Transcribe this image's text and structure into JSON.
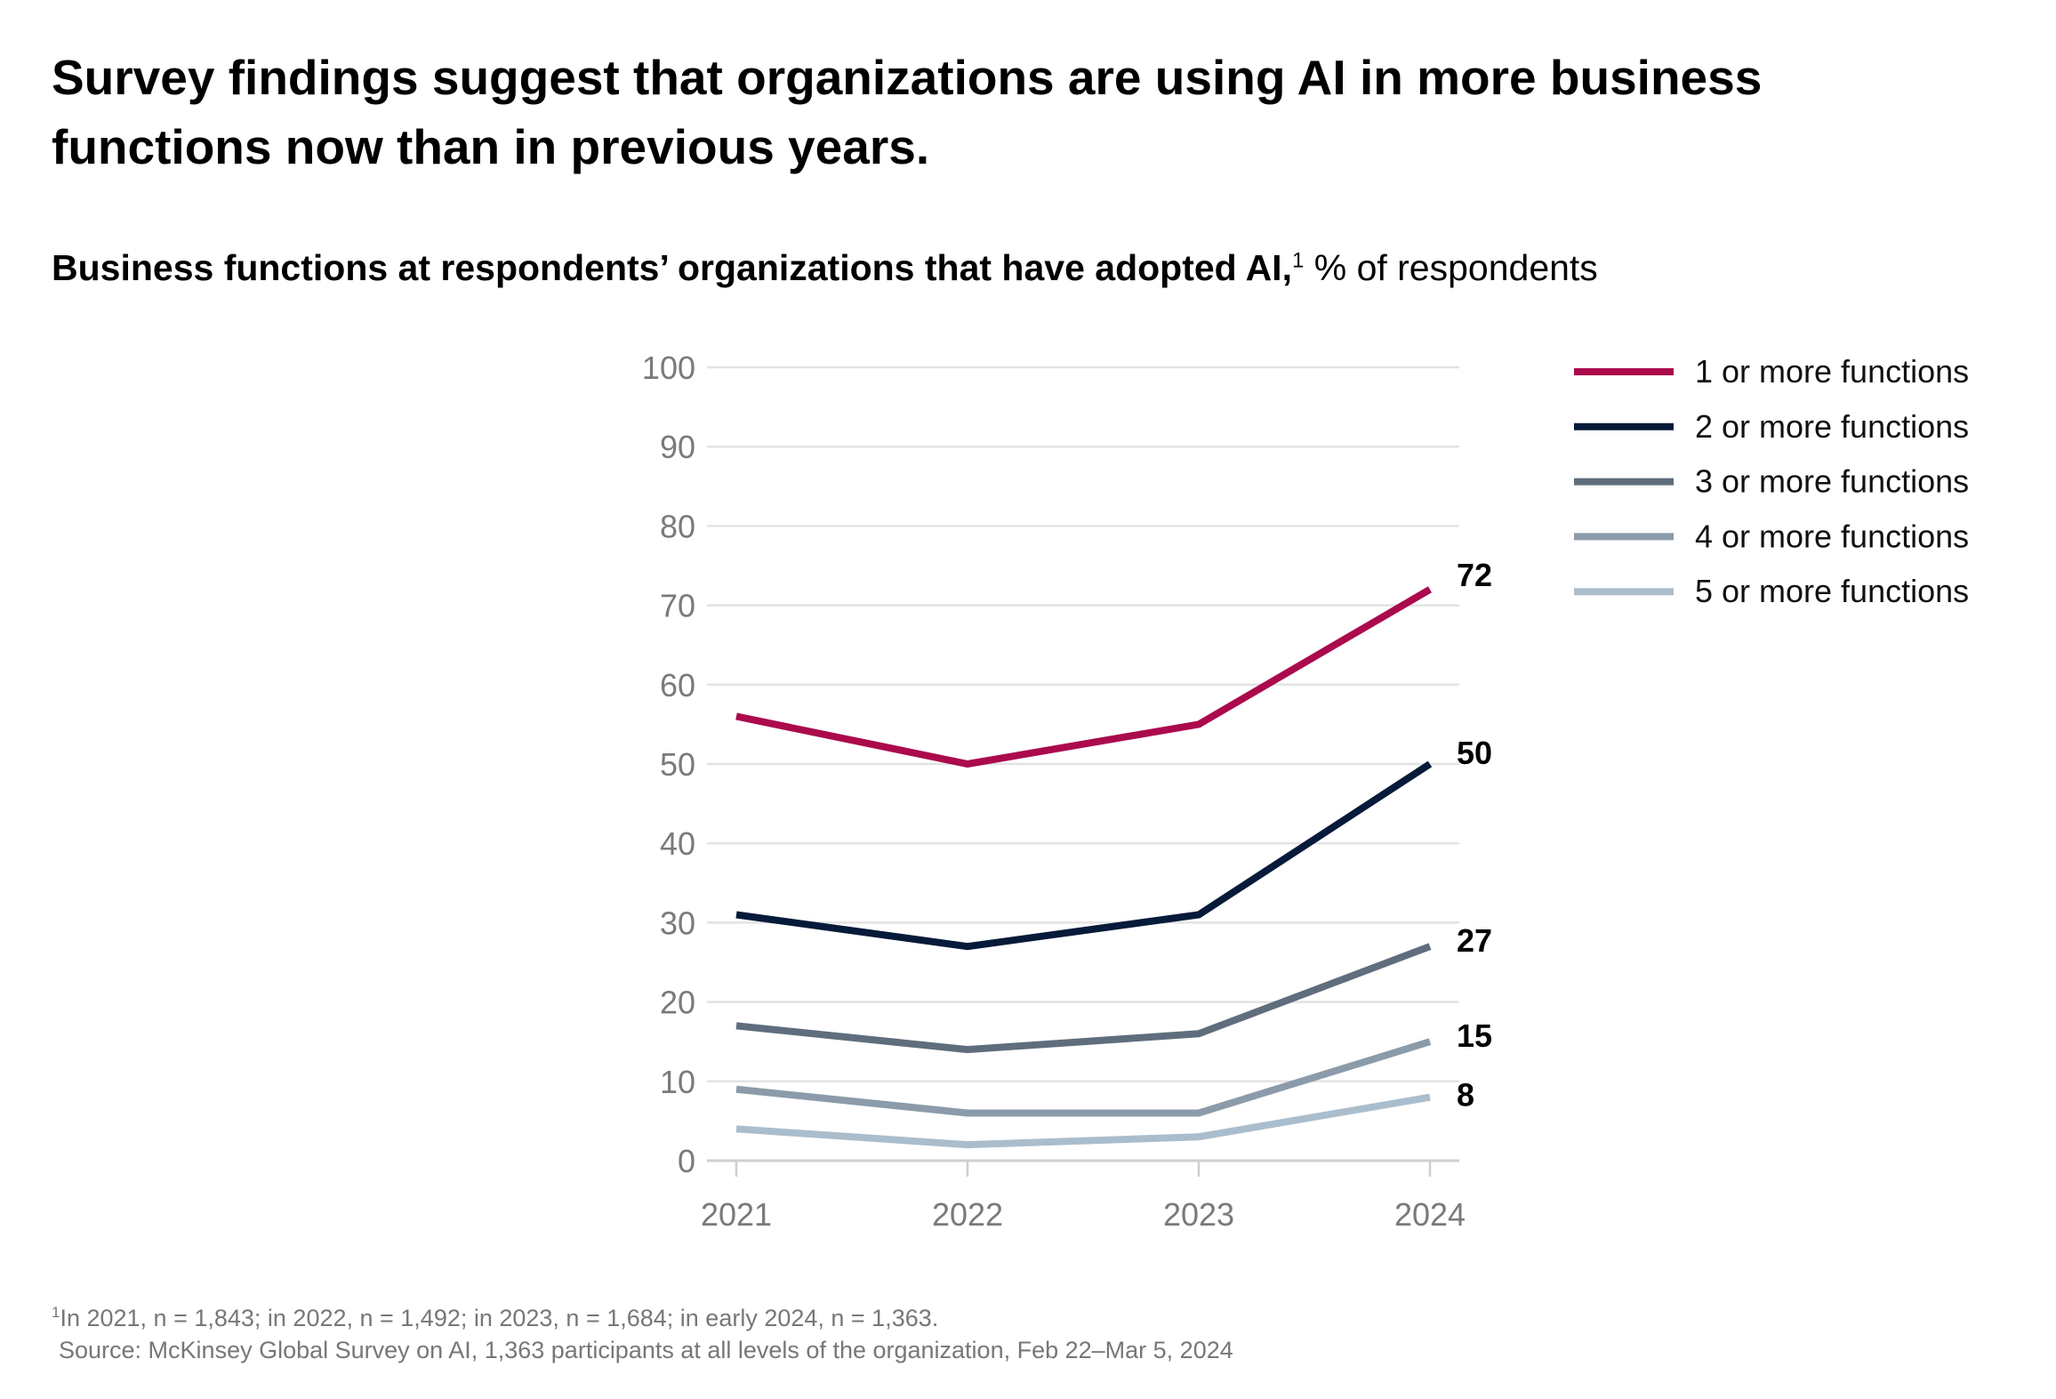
{
  "title": "Survey findings suggest that organizations are using AI in more business functions now than in previous years.",
  "subtitle": {
    "bold": "Business functions at respondents’ organizations that have adopted AI,",
    "sup": "1",
    "rest": " % of respondents"
  },
  "footnote": "In 2021, n = 1,843; in 2022, n = 1,492; in 2023, n = 1,684; in early 2024, n = 1,363.",
  "footnote_marker": "1",
  "source": "Source: McKinsey Global Survey on AI, 1,363 participants at all levels of the organization, Feb 22–Mar 5, 2024",
  "chart_data": {
    "type": "line",
    "x": [
      "2021",
      "2022",
      "2023",
      "2024"
    ],
    "ylim": [
      0,
      100
    ],
    "yticks": [
      0,
      10,
      20,
      30,
      40,
      50,
      60,
      70,
      80,
      90,
      100
    ],
    "grid": true,
    "legend": "top-right",
    "series": [
      {
        "name": "1 or more functions",
        "values": [
          56,
          50,
          55,
          72
        ],
        "color": "#ab0a4d",
        "end_label": "72"
      },
      {
        "name": "2 or more functions",
        "values": [
          31,
          27,
          31,
          50
        ],
        "color": "#061a39",
        "end_label": "50"
      },
      {
        "name": "3 or more functions",
        "values": [
          17,
          14,
          16,
          27
        ],
        "color": "#5f6d7d",
        "end_label": "27"
      },
      {
        "name": "4 or more functions",
        "values": [
          9,
          6,
          6,
          15
        ],
        "color": "#8b9ba9",
        "end_label": "15"
      },
      {
        "name": "5 or more functions",
        "values": [
          4,
          2,
          3,
          8
        ],
        "color": "#aabdcc",
        "end_label": "8"
      }
    ]
  }
}
